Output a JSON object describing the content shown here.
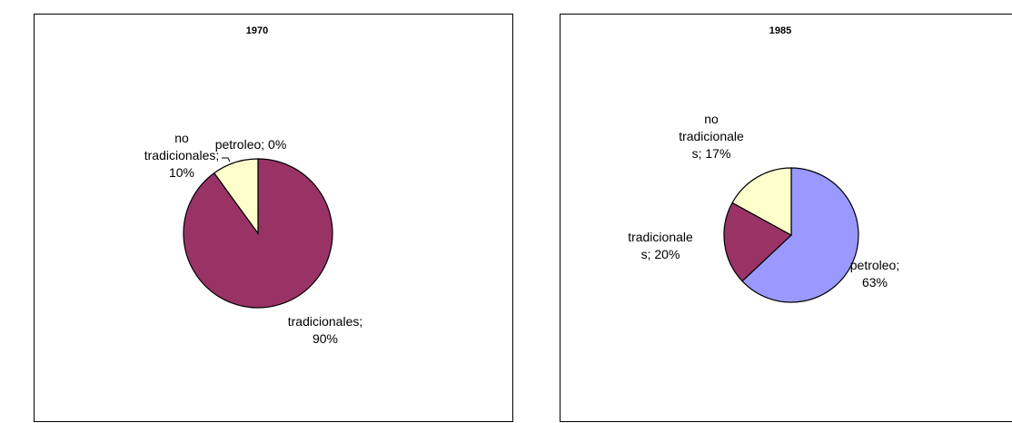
{
  "chart_data": [
    {
      "type": "pie",
      "title": "1970",
      "slices": [
        {
          "name": "tradicionales",
          "value": 90,
          "color": "#993366",
          "label_lines": [
            "tradicionales;",
            "90%"
          ]
        },
        {
          "name": "petroleo",
          "value": 0,
          "color": "#9999FF",
          "label_lines": [
            "petroleo; 0%"
          ]
        },
        {
          "name": "no tradicionales",
          "value": 10,
          "color": "#FFFFCC",
          "label_lines": [
            "no",
            "tradicionales;",
            "10%"
          ]
        }
      ]
    },
    {
      "type": "pie",
      "title": "1985",
      "slices": [
        {
          "name": "petroleo",
          "value": 63,
          "color": "#9999FF",
          "label_lines": [
            "petroleo;",
            "63%"
          ]
        },
        {
          "name": "tradicionales",
          "value": 20,
          "color": "#993366",
          "label_lines": [
            "tradicionale",
            "s; 20%"
          ]
        },
        {
          "name": "no tradicionales",
          "value": 17,
          "color": "#FFFFCC",
          "label_lines": [
            "no",
            "tradicionale",
            "s; 17%"
          ]
        }
      ]
    }
  ]
}
